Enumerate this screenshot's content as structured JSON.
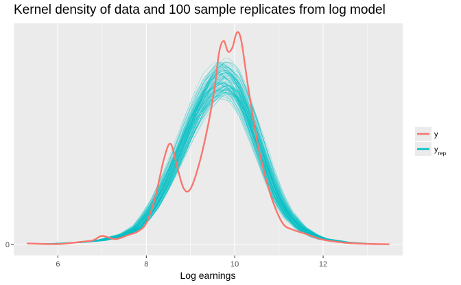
{
  "chart_data": {
    "type": "line",
    "title": "Kernel density of data and 100 sample replicates from log model",
    "xlabel": "Log earnings",
    "ylabel": "",
    "xlim": [
      5.0,
      13.8
    ],
    "ylim": [
      0,
      1.0
    ],
    "x_ticks": [
      6,
      8,
      10,
      12
    ],
    "y_ticks": [
      0
    ],
    "y_tick_labels": [
      "0"
    ],
    "grid": true,
    "legend_position": "right",
    "colors": {
      "y": "#F8766D",
      "yrep": "#00BFC4",
      "panel": "#EBEBEB",
      "grid": "#FFFFFF"
    },
    "legend": [
      {
        "key": "y",
        "label": "y",
        "sub": ""
      },
      {
        "key": "yrep",
        "label": "y",
        "sub": "rep"
      }
    ],
    "series": [
      {
        "name": "y",
        "x": [
          5.3,
          6.0,
          6.5,
          6.8,
          7.0,
          7.3,
          7.6,
          7.8,
          8.0,
          8.2,
          8.4,
          8.55,
          8.7,
          8.85,
          9.0,
          9.2,
          9.4,
          9.55,
          9.65,
          9.75,
          9.85,
          9.95,
          10.05,
          10.15,
          10.3,
          10.5,
          10.7,
          10.9,
          11.1,
          11.3,
          11.6,
          12.0,
          12.5,
          13.0,
          13.5
        ],
        "y": [
          0.005,
          0.002,
          0.012,
          0.02,
          0.04,
          0.025,
          0.045,
          0.06,
          0.1,
          0.22,
          0.4,
          0.47,
          0.36,
          0.26,
          0.26,
          0.38,
          0.56,
          0.74,
          0.9,
          0.95,
          0.9,
          0.92,
          0.99,
          0.95,
          0.74,
          0.49,
          0.31,
          0.18,
          0.095,
          0.07,
          0.05,
          0.022,
          0.008,
          0.003,
          0.001
        ]
      },
      {
        "name": "yrep",
        "replicates": 100,
        "x": [
          5.3,
          6.0,
          6.5,
          7.0,
          7.5,
          7.8,
          8.0,
          8.2,
          8.4,
          8.6,
          8.8,
          9.0,
          9.2,
          9.4,
          9.6,
          9.7,
          9.8,
          10.0,
          10.2,
          10.4,
          10.6,
          10.8,
          11.0,
          11.2,
          11.5,
          11.8,
          12.0,
          12.5,
          13.0,
          13.5
        ],
        "y": [
          0.003,
          0.005,
          0.01,
          0.02,
          0.045,
          0.08,
          0.13,
          0.19,
          0.27,
          0.36,
          0.46,
          0.56,
          0.65,
          0.72,
          0.76,
          0.775,
          0.77,
          0.74,
          0.66,
          0.55,
          0.43,
          0.31,
          0.21,
          0.14,
          0.075,
          0.04,
          0.025,
          0.01,
          0.004,
          0.001
        ]
      }
    ]
  }
}
